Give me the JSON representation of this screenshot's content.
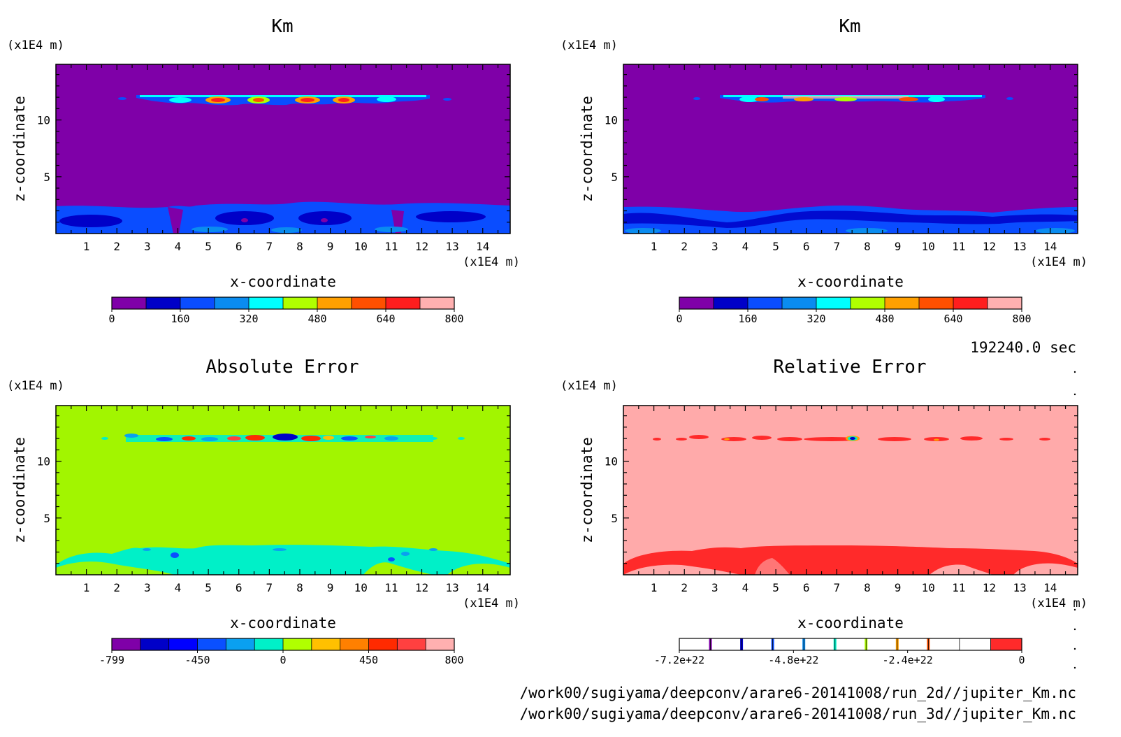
{
  "chart_data": [
    {
      "type": "heatmap",
      "title": "Km",
      "xlabel": "x-coordinate",
      "ylabel": "z-coordinate",
      "x_unit": "(x1E4 m)",
      "y_unit": "(x1E4 m)",
      "xlim": [
        0,
        14.9
      ],
      "ylim": [
        0,
        14.9
      ],
      "x_ticks": [
        "1",
        "2",
        "3",
        "4",
        "5",
        "6",
        "7",
        "8",
        "9",
        "10",
        "11",
        "12",
        "13",
        "14"
      ],
      "y_ticks": [
        "5",
        "10"
      ],
      "background_color": "#7f00a8",
      "bottom_layer_color": "#0a4dff",
      "colorbar": {
        "colors": [
          "#7f00a8",
          "#0000c8",
          "#0a4dff",
          "#0a8cf0",
          "#00ffff",
          "#b0ff00",
          "#ffa000",
          "#ff5000",
          "#ff1e1e",
          "#ffb0b0"
        ],
        "tick_labels": [
          "0",
          "160",
          "320",
          "480",
          "640",
          "800"
        ]
      }
    },
    {
      "type": "heatmap",
      "title": "Km",
      "xlabel": "x-coordinate",
      "ylabel": "z-coordinate",
      "x_unit": "(x1E4 m)",
      "y_unit": "(x1E4 m)",
      "xlim": [
        0,
        14.9
      ],
      "ylim": [
        0,
        14.9
      ],
      "x_ticks": [
        "1",
        "2",
        "3",
        "4",
        "5",
        "6",
        "7",
        "8",
        "9",
        "10",
        "11",
        "12",
        "13",
        "14"
      ],
      "y_ticks": [
        "5",
        "10"
      ],
      "background_color": "#7f00a8",
      "bottom_layer_color": "#0a4dff",
      "colorbar": {
        "colors": [
          "#7f00a8",
          "#0000c8",
          "#0a4dff",
          "#0a8cf0",
          "#00ffff",
          "#b0ff00",
          "#ffa000",
          "#ff5000",
          "#ff1e1e",
          "#ffb0b0"
        ],
        "tick_labels": [
          "0",
          "160",
          "320",
          "480",
          "640",
          "800"
        ]
      }
    },
    {
      "type": "heatmap",
      "title": "Absolute Error",
      "xlabel": "x-coordinate",
      "ylabel": "z-coordinate",
      "x_unit": "(x1E4 m)",
      "y_unit": "(x1E4 m)",
      "xlim": [
        0,
        14.9
      ],
      "ylim": [
        0,
        14.9
      ],
      "x_ticks": [
        "1",
        "2",
        "3",
        "4",
        "5",
        "6",
        "7",
        "8",
        "9",
        "10",
        "11",
        "12",
        "13",
        "14"
      ],
      "y_ticks": [
        "5",
        "10"
      ],
      "background_color": "#a2f500",
      "bottom_layer_color": "#00f0c8",
      "colorbar": {
        "colors": [
          "#7f00a8",
          "#0000c8",
          "#0000ff",
          "#0a50ff",
          "#0aa0f0",
          "#00f0c8",
          "#b0ff00",
          "#ffc000",
          "#ff8000",
          "#ff2a00",
          "#ff4040",
          "#ffb0b0"
        ],
        "tick_labels": [
          "-799",
          "-450",
          "0",
          "450",
          "800"
        ]
      }
    },
    {
      "type": "heatmap",
      "title": "Relative Error",
      "xlabel": "x-coordinate",
      "ylabel": "z-coordinate",
      "x_unit": "(x1E4 m)",
      "y_unit": "(x1E4 m)",
      "xlim": [
        0,
        14.9
      ],
      "ylim": [
        0,
        14.9
      ],
      "x_ticks": [
        "1",
        "2",
        "3",
        "4",
        "5",
        "6",
        "7",
        "8",
        "9",
        "10",
        "11",
        "12",
        "13",
        "14"
      ],
      "y_ticks": [
        "5",
        "10"
      ],
      "background_color": "#ffaaaa",
      "bottom_layer_color": "#ff2a2a",
      "colorbar": {
        "colors": [
          "#ffffff",
          "#ffffff",
          "#ffffff",
          "#ffffff",
          "#ffffff",
          "#ffffff",
          "#ffffff",
          "#ffffff",
          "#ffffff",
          "#ffffff",
          "#ff2a2a"
        ],
        "line_colors": [
          "#7f00a8",
          "#0000c8",
          "#0a4dff",
          "#0a8cf0",
          "#00f0c8",
          "#b0ff00",
          "#ffa000",
          "#ff5000"
        ],
        "tick_labels": [
          "-7.2e+22",
          "-4.8e+22",
          "-2.4e+22",
          "0"
        ]
      }
    }
  ],
  "time_label": "192240.0 sec",
  "file_paths": [
    "/work00/sugiyama/deepconv/arare6-20141008/run_2d//jupiter_Km.nc",
    "/work00/sugiyama/deepconv/arare6-20141008/run_3d//jupiter_Km.nc"
  ]
}
